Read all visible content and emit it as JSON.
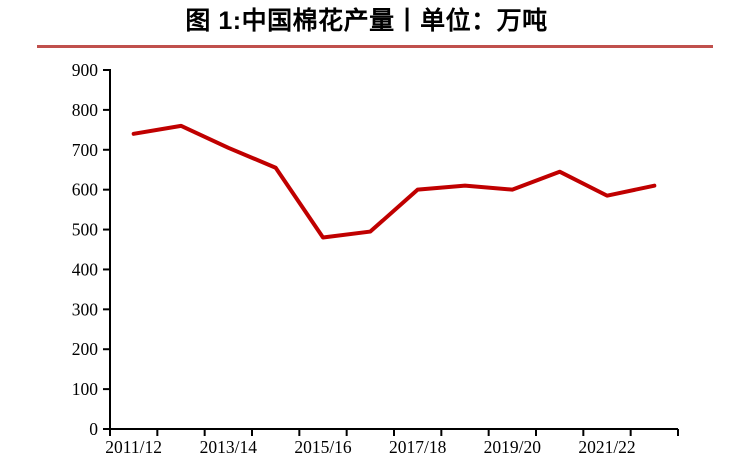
{
  "header": {
    "title": "图 1:中国棉花产量丨单位：万吨",
    "rule_color": "#C0504D"
  },
  "chart_data": {
    "type": "line",
    "title": "图 1:中国棉花产量丨单位：万吨",
    "unit": "万吨",
    "categories": [
      "2011/12",
      "2012/13",
      "2013/14",
      "2014/15",
      "2015/16",
      "2016/17",
      "2017/18",
      "2018/19",
      "2019/20",
      "2020/21",
      "2021/22",
      "2022/23"
    ],
    "series": [
      {
        "name": "中国棉花产量",
        "values": [
          740,
          760,
          705,
          655,
          480,
          495,
          600,
          610,
          600,
          645,
          585,
          610
        ]
      }
    ],
    "x_tick_labels": [
      "2011/12",
      "2013/14",
      "2015/16",
      "2017/18",
      "2019/20",
      "2021/22"
    ],
    "x_label_every": 2,
    "ylim": [
      0,
      900
    ],
    "ytick_step": 100,
    "ytick_labels": [
      "0",
      "100",
      "200",
      "300",
      "400",
      "500",
      "600",
      "700",
      "800",
      "900"
    ],
    "grid": false,
    "legend_position": "none",
    "line_color": "#C00000",
    "axis_color": "#000000"
  }
}
